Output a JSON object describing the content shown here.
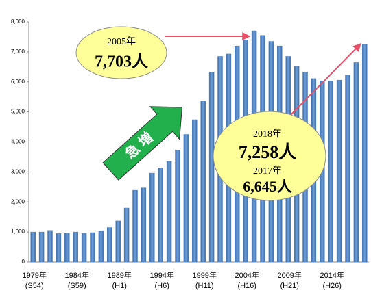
{
  "chart_data": {
    "type": "bar",
    "categories": [
      "1979年",
      null,
      null,
      null,
      null,
      "1984年",
      null,
      null,
      null,
      null,
      "1989年",
      null,
      null,
      null,
      null,
      "1994年",
      null,
      null,
      null,
      null,
      "1999年",
      null,
      null,
      null,
      null,
      "2004年",
      null,
      null,
      null,
      null,
      "2009年",
      null,
      null,
      null,
      null,
      "2014年",
      null,
      null,
      null,
      null
    ],
    "category_sublabels": [
      "(S54)",
      null,
      null,
      null,
      null,
      "(S59)",
      null,
      null,
      null,
      null,
      "(H1)",
      null,
      null,
      null,
      null,
      "(H6)",
      null,
      null,
      null,
      null,
      "(H11)",
      null,
      null,
      null,
      null,
      "(H16)",
      null,
      null,
      null,
      null,
      "(H21)",
      null,
      null,
      null,
      null,
      "(H26)",
      null,
      null,
      null,
      null
    ],
    "values": [
      1000,
      1000,
      1030,
      950,
      960,
      1000,
      960,
      980,
      1020,
      1150,
      1370,
      1800,
      2390,
      2470,
      2960,
      3140,
      3350,
      3730,
      4250,
      4740,
      5360,
      6330,
      6850,
      6930,
      7200,
      7400,
      7703,
      7550,
      7350,
      7200,
      6850,
      6530,
      6330,
      6110,
      6030,
      6030,
      6060,
      6230,
      6645,
      7258
    ],
    "color": "#4f81bd",
    "ylim": [
      0,
      8000
    ],
    "yticks": [
      0,
      {
        "value": 1000,
        "label": "1,000"
      },
      {
        "value": 2000,
        "label": "2,000"
      },
      {
        "value": 3000,
        "label": "3,000"
      },
      {
        "value": 4000,
        "label": "4,000"
      },
      {
        "value": 5000,
        "label": "5,000"
      },
      {
        "value": 6000,
        "label": "6,000"
      },
      {
        "value": 7000,
        "label": "7,000"
      },
      {
        "value": 8000,
        "label": "8,000"
      }
    ],
    "grid": false,
    "annotations": {
      "peak_year": "2005年",
      "peak_value": "7,703人",
      "latest_year": "2018年",
      "latest_value": "7,258人",
      "prev_year": "2017年",
      "prev_value": "6,645人",
      "arrow_text": "急 増"
    }
  }
}
